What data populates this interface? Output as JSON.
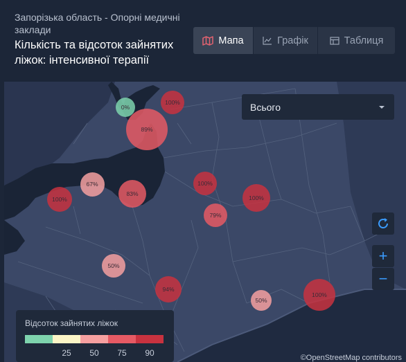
{
  "header": {
    "region_title": "Запорізька область - Опорні медичні заклади",
    "main_title": "Кількість та відсоток зайнятих ліжок: інтенсивної терапії"
  },
  "tabs": [
    {
      "label": "Мапа",
      "icon": "map-icon",
      "active": true
    },
    {
      "label": "Графік",
      "icon": "chart-line-icon",
      "active": false
    },
    {
      "label": "Таблиця",
      "icon": "table-icon",
      "active": false
    }
  ],
  "filter": {
    "selected": "Всього"
  },
  "controls": {
    "refresh_icon": "refresh-icon",
    "zoom_in": "+",
    "zoom_out": "−"
  },
  "map": {
    "markers": [
      {
        "label": "0%",
        "value": 0
      },
      {
        "label": "100%",
        "value": 100
      },
      {
        "label": "89%",
        "value": 89
      },
      {
        "label": "67%",
        "value": 67
      },
      {
        "label": "100%",
        "value": 100
      },
      {
        "label": "83%",
        "value": 83
      },
      {
        "label": "100%",
        "value": 100
      },
      {
        "label": "79%",
        "value": 79
      },
      {
        "label": "100%",
        "value": 100
      },
      {
        "label": "50%",
        "value": 50
      },
      {
        "label": "94%",
        "value": 94
      },
      {
        "label": "50%",
        "value": 50
      },
      {
        "label": "100%",
        "value": 100
      }
    ],
    "attribution": "©OpenStreetMap contributors"
  },
  "legend": {
    "title": "Відсоток зайнятих ліжок",
    "colors": [
      "#7ed3ad",
      "#fbf4c6",
      "#f6a0a0",
      "#e65a64",
      "#c8323f"
    ],
    "ticks": [
      "25",
      "50",
      "75",
      "90"
    ]
  }
}
